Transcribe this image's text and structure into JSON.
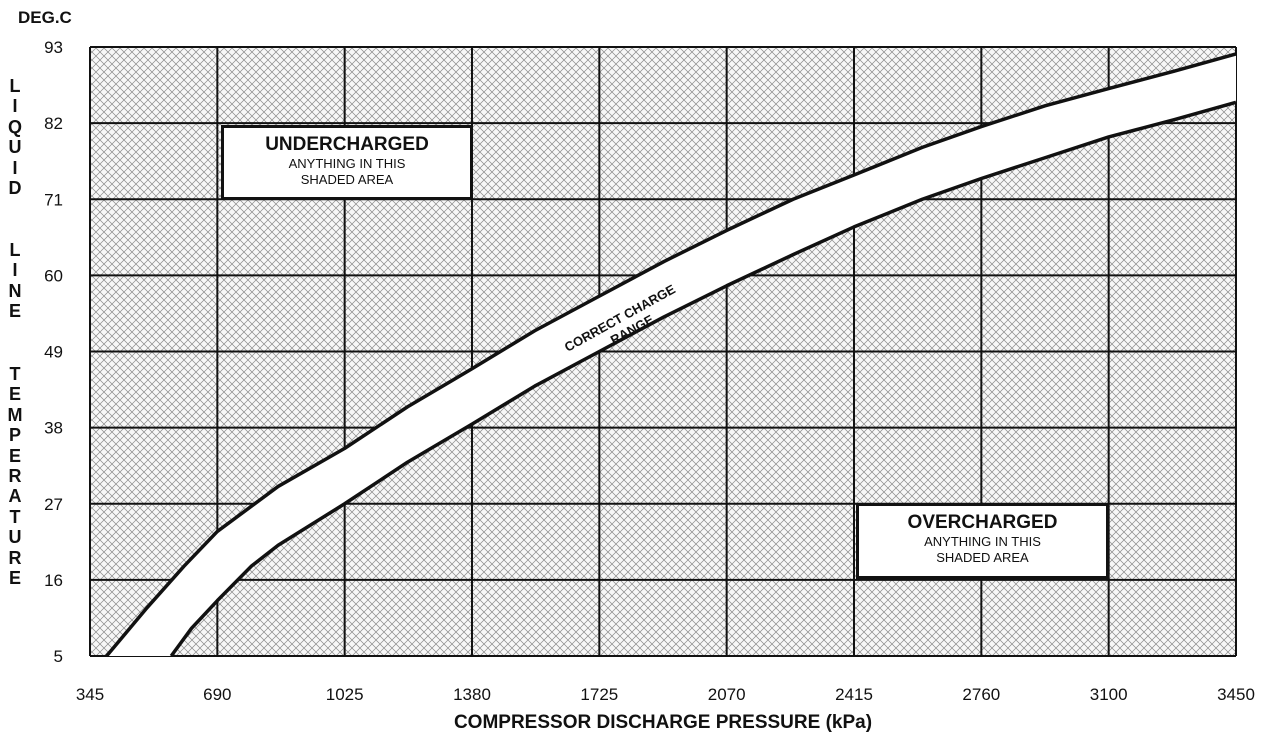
{
  "chart_data": {
    "type": "area",
    "y_unit": "DEG.C",
    "ylabel_lines": [
      "LIQUID",
      "LINE",
      "TEMPERATURE"
    ],
    "xlabel": "COMPRESSOR DISCHARGE PRESSURE (kPa)",
    "x_ticks": [
      "345",
      "690",
      "1025",
      "1380",
      "1725",
      "2070",
      "2415",
      "2760",
      "3100",
      "3450"
    ],
    "y_ticks": [
      "93",
      "82",
      "71",
      "60",
      "49",
      "38",
      "27",
      "16",
      "5"
    ],
    "xlim": [
      345,
      3450
    ],
    "ylim": [
      5,
      93
    ],
    "grid": true,
    "upper_curve": {
      "x": [
        390,
        500,
        600,
        690,
        850,
        1025,
        1200,
        1380,
        1550,
        1725,
        1900,
        2070,
        2250,
        2415,
        2600,
        2760,
        2930,
        3100,
        3280,
        3450
      ],
      "y": [
        5,
        12,
        18,
        23,
        29.5,
        35,
        41,
        46.5,
        52,
        57,
        62,
        66.5,
        71,
        74.5,
        78.5,
        81.5,
        84.5,
        87,
        89.5,
        92
      ]
    },
    "lower_curve": {
      "x": [
        565,
        620,
        690,
        780,
        850,
        1025,
        1200,
        1380,
        1550,
        1725,
        1900,
        2070,
        2250,
        2415,
        2600,
        2760,
        2930,
        3100,
        3280,
        3450
      ],
      "y": [
        5,
        9,
        13,
        18,
        21,
        27,
        33,
        38.5,
        44,
        49,
        54,
        58.5,
        63,
        67,
        71,
        74,
        77,
        80,
        82.5,
        85
      ]
    },
    "band_label": [
      "CORRECT CHARGE",
      "RANGE"
    ],
    "undercharged": {
      "title": "UNDERCHARGED",
      "line1": "ANYTHING IN THIS",
      "line2": "SHADED AREA"
    },
    "overcharged": {
      "title": "OVERCHARGED",
      "line1": "ANYTHING IN THIS",
      "line2": "SHADED AREA"
    }
  }
}
